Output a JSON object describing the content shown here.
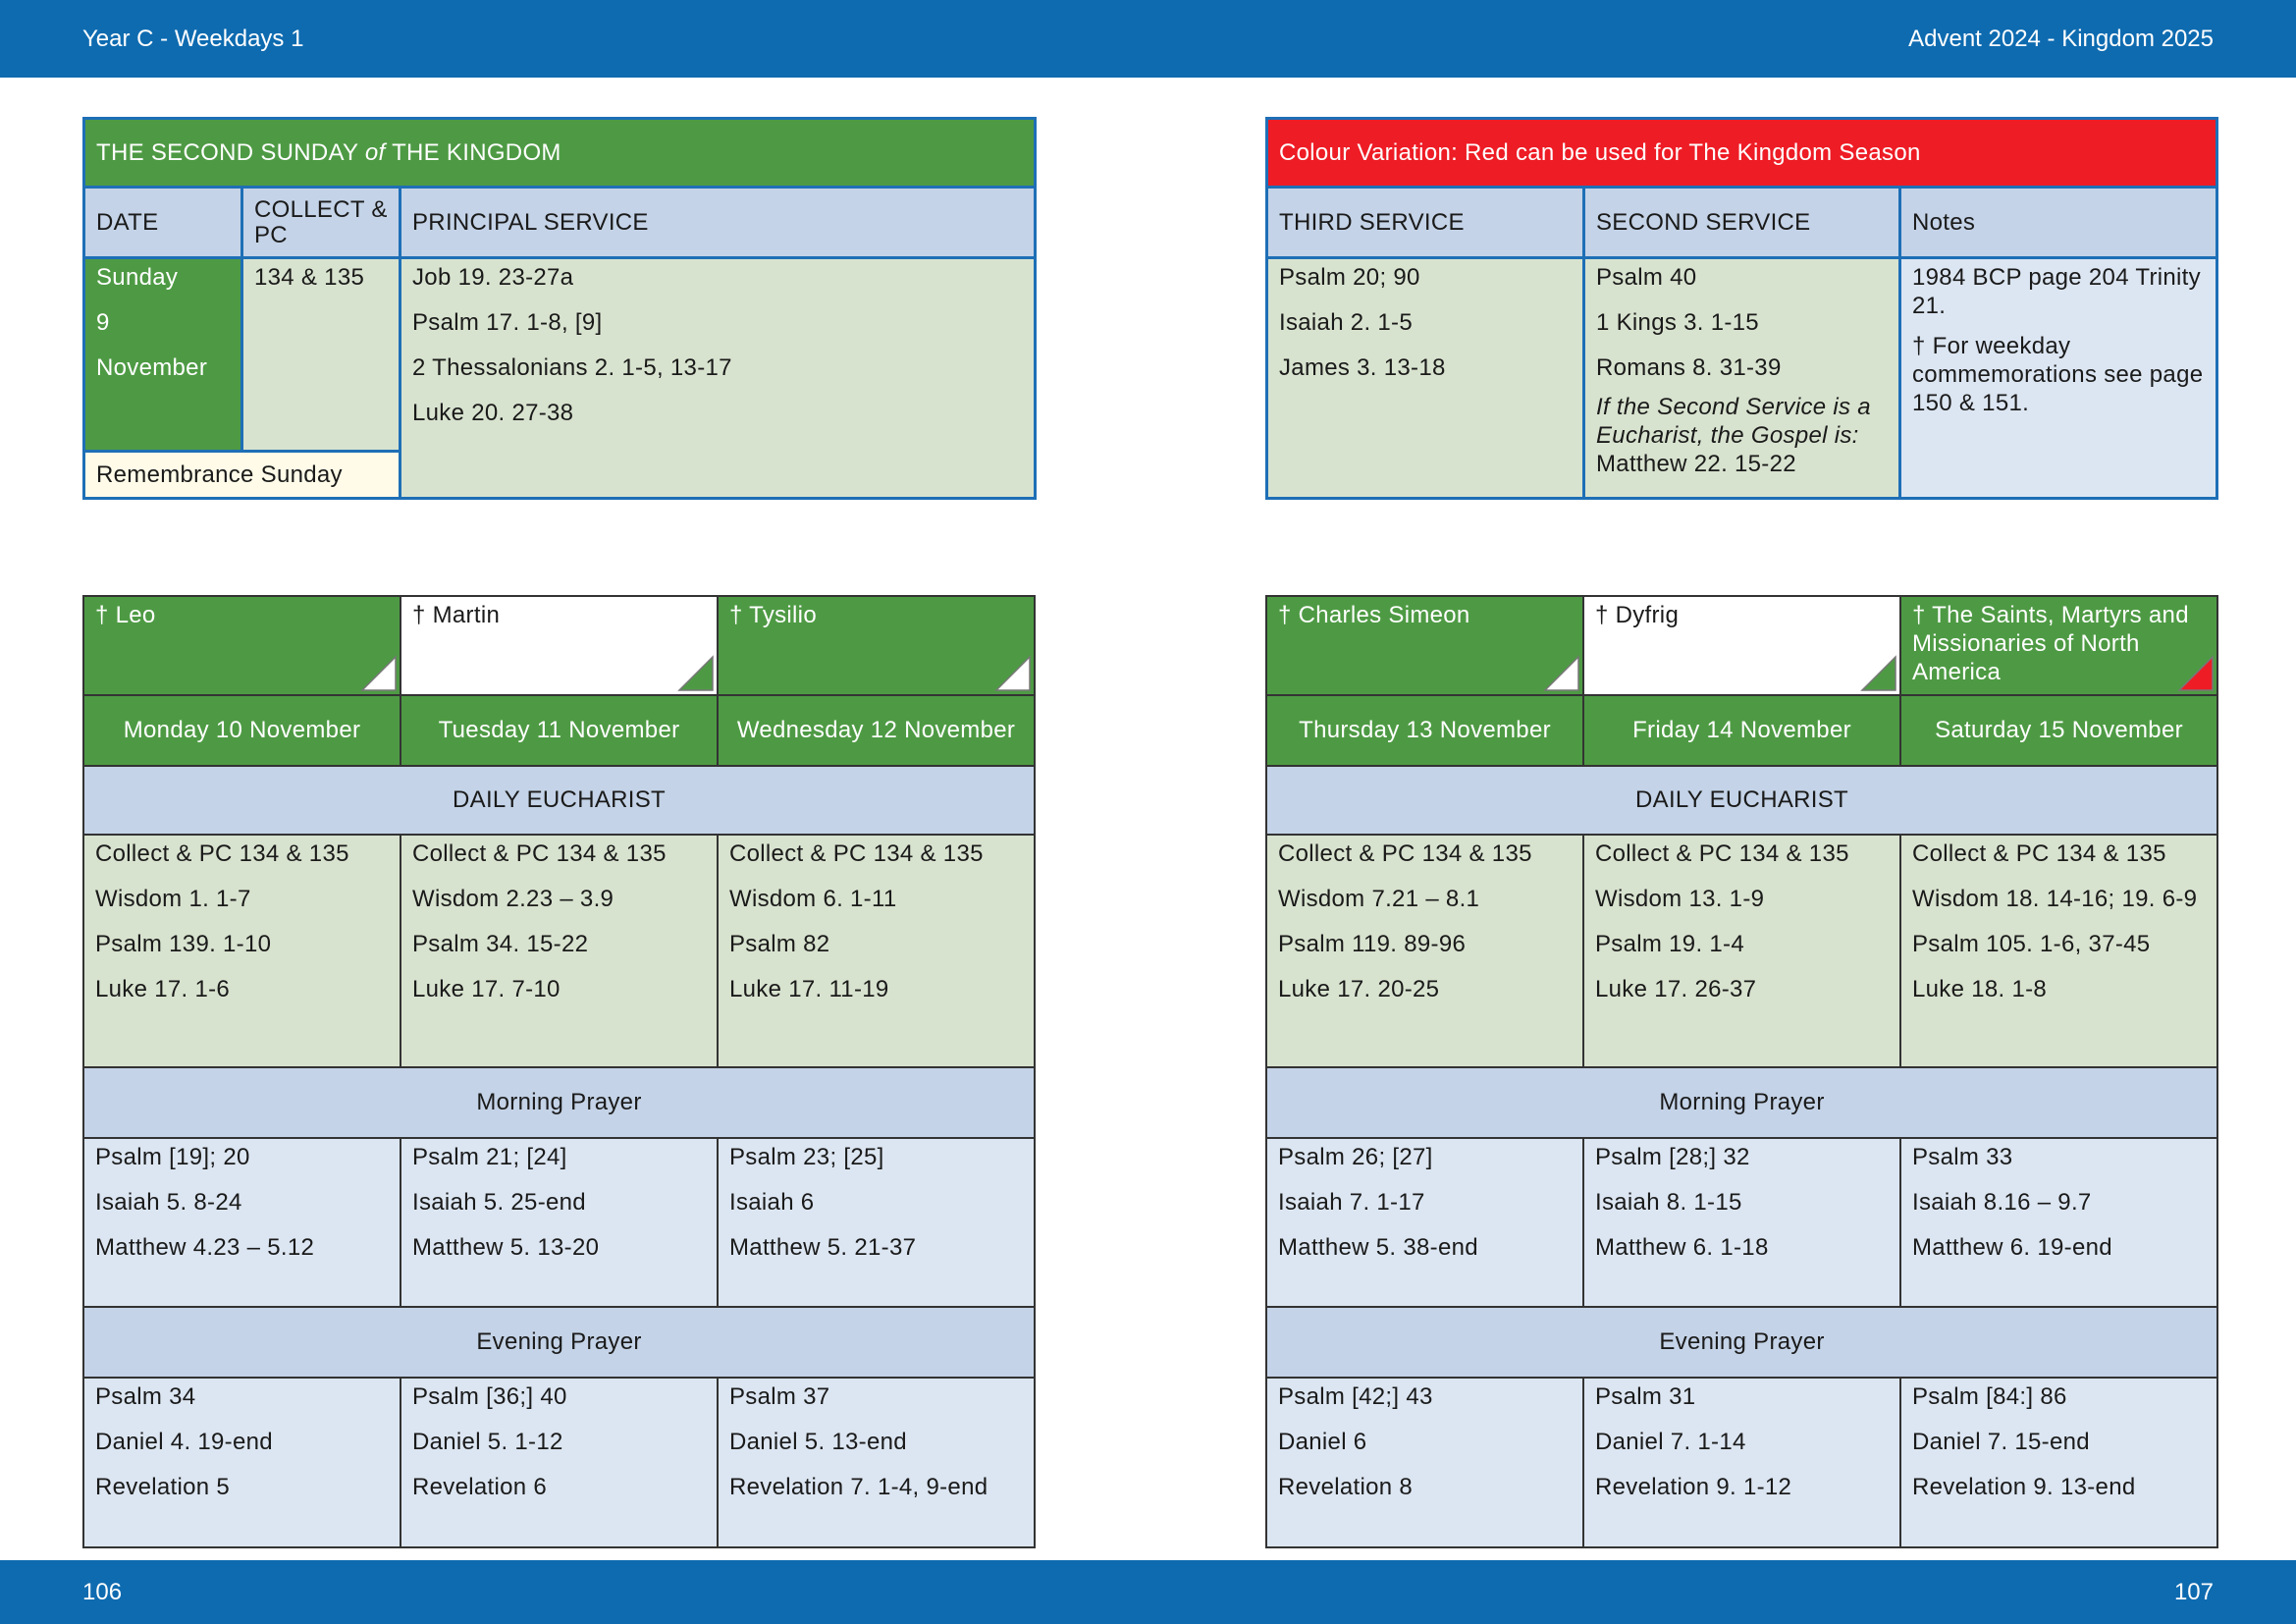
{
  "header": {
    "left": "Year C - Weekdays 1",
    "right": "Advent  2024 - Kingdom 2025"
  },
  "footer": {
    "left_page": "106",
    "right_page": "107"
  },
  "sunday": {
    "title_parts": [
      "THE SECOND SUNDAY",
      "of",
      "THE KINGDOM"
    ],
    "headers": [
      "DATE",
      "COLLECT & PC",
      "PRINCIPAL SERVICE"
    ],
    "date": [
      "Sunday",
      "9",
      "November"
    ],
    "collect": "134 & 135",
    "principal": [
      "Job 19. 23-27a",
      "Psalm 17. 1-8, [9]",
      "2 Thessalonians 2. 1-5, 13-17",
      "Luke 20. 27-38"
    ],
    "remembrance": "Remembrance Sunday"
  },
  "services": {
    "banner": "Colour Variation: Red can be used for The Kingdom Season",
    "headers": [
      "THIRD SERVICE",
      "SECOND SERVICE",
      "Notes"
    ],
    "third": [
      "Psalm 20; 90",
      "Isaiah 2. 1-5",
      "James 3. 13-18"
    ],
    "second": [
      "Psalm 40",
      "1 Kings 3. 1-15",
      "Romans 8. 31-39"
    ],
    "second_note": "If the Second Service is a Eucharist, the Gospel is:",
    "second_gospel": "Matthew 22. 15-22",
    "notes": [
      "1984 BCP page 204 Trinity 21.",
      "† For weekday commemorations see page 150 & 151."
    ]
  },
  "weeks": [
    {
      "sections": {
        "eucharist": "DAILY EUCHARIST",
        "morning": "Morning Prayer",
        "evening": "Evening Prayer"
      },
      "days": [
        {
          "commemoration": "† Leo",
          "cell_color": "#4e9a44",
          "triangle_color": "#ffffff",
          "date": "Monday 10 November",
          "eucharist": [
            "Collect & PC 134 & 135",
            "Wisdom 1. 1-7",
            "Psalm 139. 1-10",
            "Luke 17. 1-6"
          ],
          "morning": [
            "Psalm [19]; 20",
            "Isaiah 5. 8-24",
            "Matthew 4.23 – 5.12"
          ],
          "evening": [
            "Psalm 34",
            "Daniel 4. 19-end",
            "Revelation 5"
          ]
        },
        {
          "commemoration": "† Martin",
          "cell_color": "#ffffff",
          "triangle_color": "#4e9a44",
          "date": "Tuesday 11 November",
          "eucharist": [
            "Collect & PC 134 & 135",
            "Wisdom 2.23 – 3.9",
            "Psalm 34. 15-22",
            "Luke 17. 7-10"
          ],
          "morning": [
            "Psalm 21; [24]",
            "Isaiah 5. 25-end",
            "Matthew 5. 13-20"
          ],
          "evening": [
            "Psalm [36;] 40",
            "Daniel 5. 1-12",
            "Revelation 6"
          ]
        },
        {
          "commemoration": "† Tysilio",
          "cell_color": "#4e9a44",
          "triangle_color": "#ffffff",
          "date": "Wednesday 12 November",
          "eucharist": [
            "Collect & PC 134 & 135",
            "Wisdom 6. 1-11",
            "Psalm 82",
            "Luke 17. 11-19"
          ],
          "morning": [
            "Psalm 23; [25]",
            "Isaiah 6",
            "Matthew 5. 21-37"
          ],
          "evening": [
            "Psalm 37",
            "Daniel 5. 13-end",
            "Revelation 7. 1-4, 9-end"
          ]
        }
      ]
    },
    {
      "sections": {
        "eucharist": "DAILY EUCHARIST",
        "morning": "Morning Prayer",
        "evening": "Evening Prayer"
      },
      "days": [
        {
          "commemoration": "† Charles Simeon",
          "cell_color": "#4e9a44",
          "triangle_color": "#ffffff",
          "date": "Thursday 13 November",
          "eucharist": [
            "Collect & PC 134 & 135",
            "Wisdom 7.21 – 8.1",
            "Psalm 119. 89-96",
            "Luke 17. 20-25"
          ],
          "morning": [
            "Psalm 26; [27]",
            "Isaiah 7. 1-17",
            "Matthew 5. 38-end"
          ],
          "evening": [
            "Psalm [42;] 43",
            "Daniel 6",
            "Revelation 8"
          ]
        },
        {
          "commemoration": "† Dyfrig",
          "cell_color": "#ffffff",
          "triangle_color": "#4e9a44",
          "date": "Friday 14 November",
          "eucharist": [
            "Collect & PC 134 & 135",
            "Wisdom 13. 1-9",
            "Psalm 19. 1-4",
            "Luke 17. 26-37"
          ],
          "morning": [
            "Psalm [28;] 32",
            "Isaiah 8. 1-15",
            "Matthew 6. 1-18"
          ],
          "evening": [
            "Psalm 31",
            "Daniel 7. 1-14",
            "Revelation 9. 1-12"
          ]
        },
        {
          "commemoration": "† The Saints, Martyrs and Missionaries of North America",
          "cell_color": "#4e9a44",
          "triangle_color": "#ee1c25",
          "date": "Saturday 15 November",
          "eucharist": [
            "Collect & PC 134 & 135",
            "Wisdom 18. 14-16; 19. 6-9",
            "Psalm 105. 1-6, 37-45",
            "Luke 18. 1-8"
          ],
          "morning": [
            "Psalm 33",
            "Isaiah 8.16 – 9.7",
            "Matthew 6. 19-end"
          ],
          "evening": [
            "Psalm [84:] 86",
            "Daniel 7. 15-end",
            "Revelation 9. 13-end"
          ]
        }
      ]
    }
  ]
}
